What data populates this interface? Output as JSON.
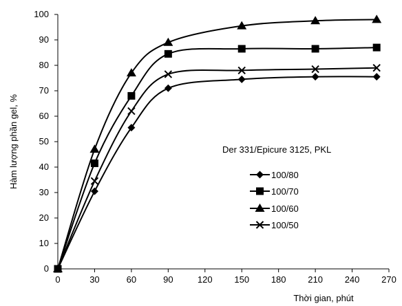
{
  "chart_data": {
    "type": "line",
    "xlabel": "Thời gian, phút",
    "ylabel": "Hàm lượng phần gel, %",
    "xlim": [
      0,
      270
    ],
    "ylim": [
      0,
      100
    ],
    "xticks": [
      0,
      30,
      60,
      90,
      120,
      150,
      180,
      210,
      240,
      270
    ],
    "yticks": [
      0,
      10,
      20,
      30,
      40,
      50,
      60,
      70,
      80,
      90,
      100
    ],
    "grid": false,
    "smooth": true,
    "legend_title": "Der 331/Epicure 3125, PKL",
    "legend_position": "right-center",
    "series": [
      {
        "name": "100/80",
        "marker": "diamond",
        "x": [
          0,
          30,
          60,
          90,
          150,
          210,
          260
        ],
        "values": [
          0,
          30.5,
          55.5,
          71,
          74.5,
          75.5,
          75.5
        ]
      },
      {
        "name": "100/70",
        "marker": "square",
        "x": [
          0,
          30,
          60,
          90,
          150,
          210,
          260
        ],
        "values": [
          0,
          41.5,
          68,
          84.5,
          86.5,
          86.5,
          87
        ]
      },
      {
        "name": "100/60",
        "marker": "triangle",
        "x": [
          0,
          30,
          60,
          90,
          150,
          210,
          260
        ],
        "values": [
          0,
          47,
          77,
          89,
          95.5,
          97.5,
          98
        ]
      },
      {
        "name": "100/50",
        "marker": "cross",
        "x": [
          0,
          30,
          60,
          90,
          150,
          210,
          260
        ],
        "values": [
          0,
          34.5,
          62,
          76.5,
          78,
          78.5,
          79
        ]
      }
    ]
  }
}
